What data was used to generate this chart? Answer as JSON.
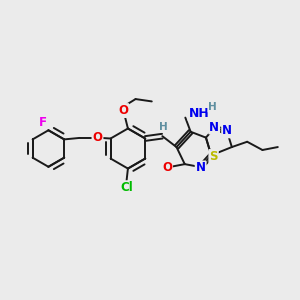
{
  "bg_color": "#ebebeb",
  "bond_color": "#1a1a1a",
  "bond_width": 1.4,
  "atom_colors": {
    "C": "#1a1a1a",
    "H": "#5f8fa0",
    "N": "#0000ee",
    "O": "#ee0000",
    "S": "#bbbb00",
    "F": "#ee00ee",
    "Cl": "#00bb00"
  },
  "font_size": 8.5
}
